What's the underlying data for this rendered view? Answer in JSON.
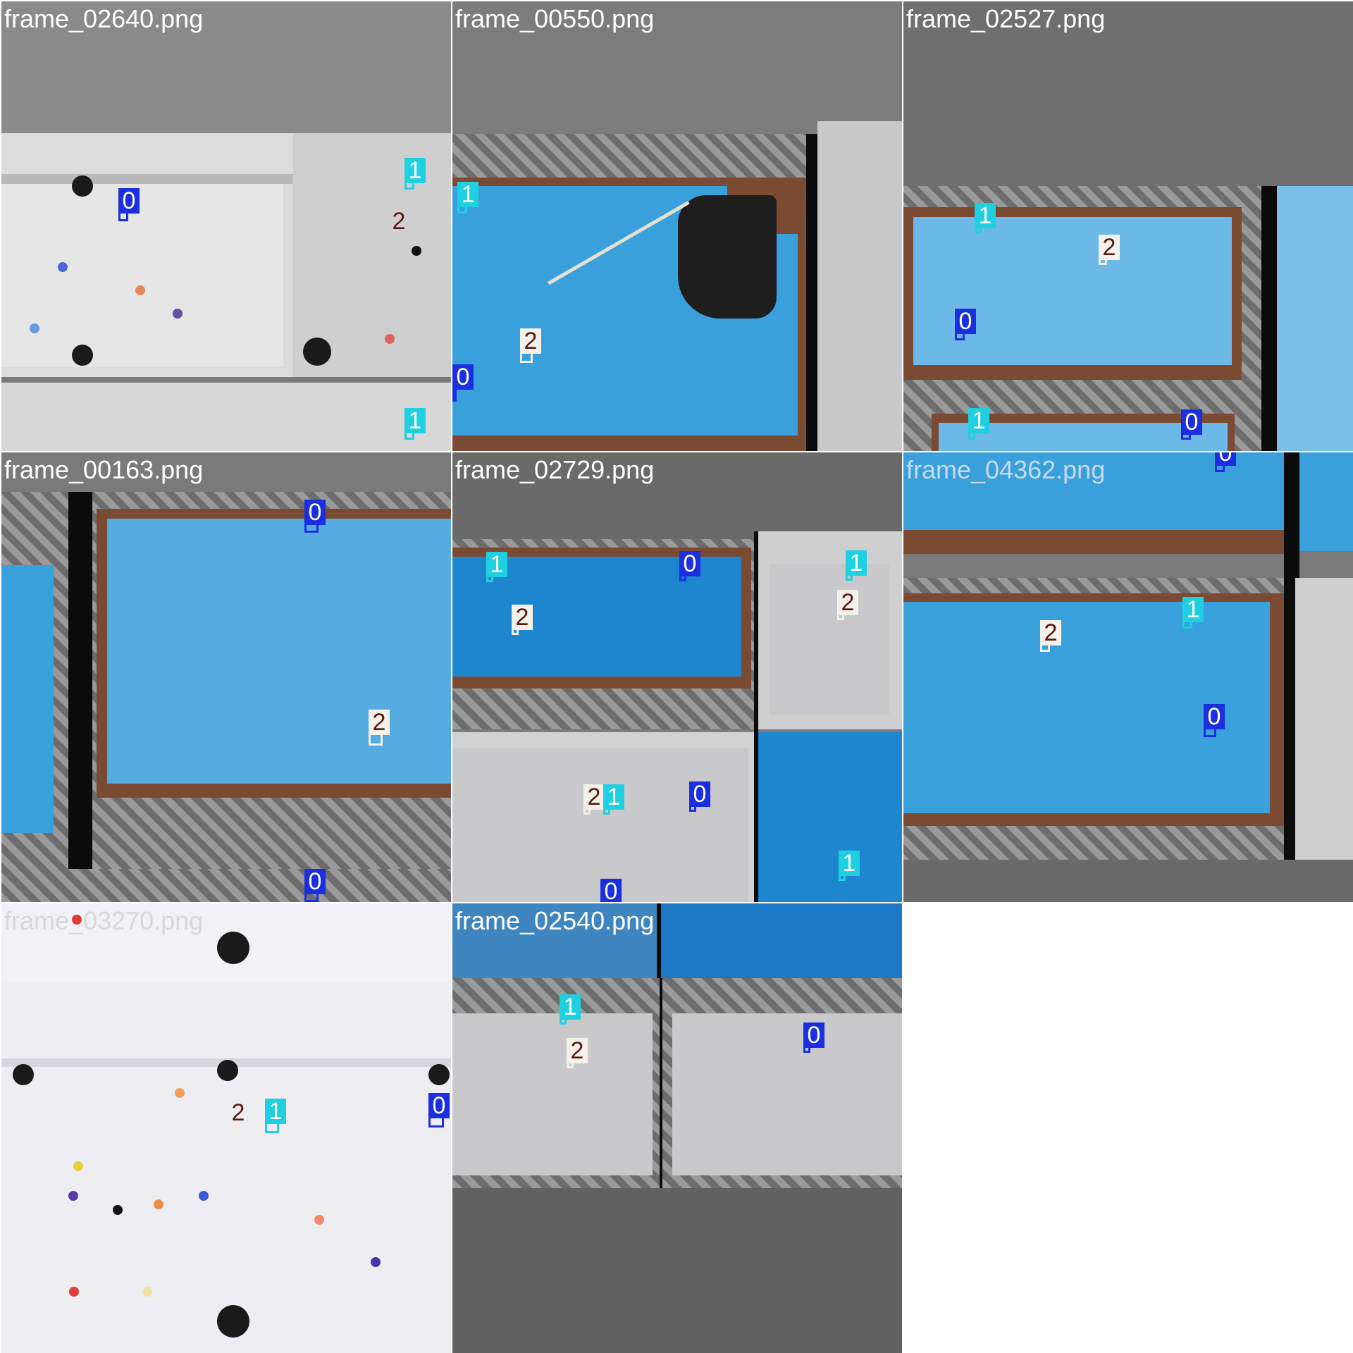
{
  "mosaic": {
    "tiles": [
      {
        "name": "frame_02640.png",
        "boxes": [
          {
            "cls": "0"
          },
          {
            "cls": "1"
          },
          {
            "cls": "2"
          },
          {
            "cls": "1"
          }
        ]
      },
      {
        "name": "frame_00550.png",
        "boxes": [
          {
            "cls": "1"
          },
          {
            "cls": "2"
          },
          {
            "cls": "0"
          }
        ]
      },
      {
        "name": "frame_02527.png",
        "boxes": [
          {
            "cls": "1"
          },
          {
            "cls": "2"
          },
          {
            "cls": "0"
          },
          {
            "cls": "1"
          },
          {
            "cls": "0"
          }
        ]
      },
      {
        "name": "frame_00163.png",
        "boxes": [
          {
            "cls": "0"
          },
          {
            "cls": "2"
          },
          {
            "cls": "0"
          }
        ]
      },
      {
        "name": "frame_02729.png",
        "boxes": [
          {
            "cls": "1"
          },
          {
            "cls": "0"
          },
          {
            "cls": "2"
          },
          {
            "cls": "1"
          },
          {
            "cls": "2"
          },
          {
            "cls": "2"
          },
          {
            "cls": "1"
          },
          {
            "cls": "0"
          },
          {
            "cls": "1"
          },
          {
            "cls": "0"
          }
        ]
      },
      {
        "name": "frame_04362.png",
        "boxes": [
          {
            "cls": "0"
          },
          {
            "cls": "2"
          },
          {
            "cls": "1"
          },
          {
            "cls": "0"
          }
        ]
      },
      {
        "name": "frame_03270.png",
        "boxes": [
          {
            "cls": "2"
          },
          {
            "cls": "1"
          },
          {
            "cls": "0"
          }
        ]
      },
      {
        "name": "frame_02540.png",
        "boxes": [
          {
            "cls": "1"
          },
          {
            "cls": "2"
          },
          {
            "cls": "0"
          }
        ]
      }
    ]
  }
}
